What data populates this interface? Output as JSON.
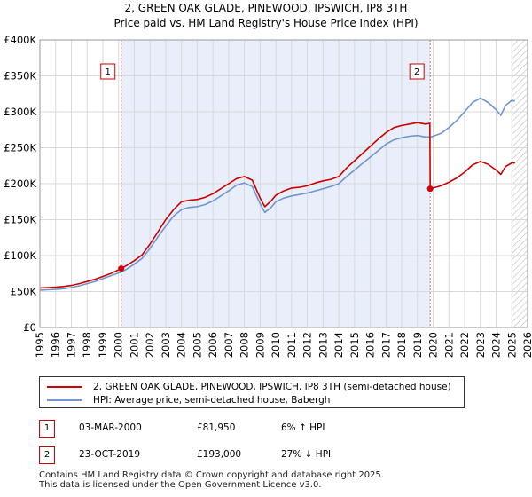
{
  "chart_data": {
    "type": "line",
    "title": "2, GREEN OAK GLADE, PINEWOOD, IPSWICH, IP8 3TH",
    "subtitle": "Price paid vs. HM Land Registry's House Price Index (HPI)",
    "xlabel": "",
    "ylabel": "",
    "xlim": [
      1995,
      2026
    ],
    "ylim": [
      0,
      400000
    ],
    "x_ticks": [
      1995,
      1996,
      1997,
      1998,
      1999,
      2000,
      2001,
      2002,
      2003,
      2004,
      2005,
      2006,
      2007,
      2008,
      2009,
      2010,
      2011,
      2012,
      2013,
      2014,
      2015,
      2016,
      2017,
      2018,
      2019,
      2020,
      2021,
      2022,
      2023,
      2024,
      2025,
      2026
    ],
    "y_ticks": [
      0,
      50000,
      100000,
      150000,
      200000,
      250000,
      300000,
      350000,
      400000
    ],
    "y_tick_labels": [
      "£0",
      "£50K",
      "£100K",
      "£150K",
      "£200K",
      "£250K",
      "£300K",
      "£350K",
      "£400K"
    ],
    "grid": true,
    "shaded_region": {
      "from": 2000.17,
      "to": 2019.81,
      "color": "#e8eefa"
    },
    "hatched_region": {
      "from": 2025.0,
      "to": 2026
    },
    "series": [
      {
        "name": "2, GREEN OAK GLADE, PINEWOOD, IPSWICH, IP8 3TH (semi-detached house)",
        "color": "#cc0000",
        "points": [
          [
            1995.0,
            55000
          ],
          [
            1995.5,
            55500
          ],
          [
            1996.0,
            56000
          ],
          [
            1996.5,
            57000
          ],
          [
            1997.0,
            58500
          ],
          [
            1997.5,
            61000
          ],
          [
            1998.0,
            64000
          ],
          [
            1998.5,
            67000
          ],
          [
            1999.0,
            71000
          ],
          [
            1999.5,
            75000
          ],
          [
            2000.17,
            81950
          ],
          [
            2000.5,
            86000
          ],
          [
            2001.0,
            93000
          ],
          [
            2001.5,
            101000
          ],
          [
            2002.0,
            116000
          ],
          [
            2002.5,
            133000
          ],
          [
            2003.0,
            150000
          ],
          [
            2003.5,
            164000
          ],
          [
            2004.0,
            175000
          ],
          [
            2004.5,
            177000
          ],
          [
            2005.0,
            178000
          ],
          [
            2005.5,
            181000
          ],
          [
            2006.0,
            186000
          ],
          [
            2006.5,
            193000
          ],
          [
            2007.0,
            200000
          ],
          [
            2007.5,
            207000
          ],
          [
            2008.0,
            210000
          ],
          [
            2008.5,
            205000
          ],
          [
            2009.0,
            180000
          ],
          [
            2009.3,
            168000
          ],
          [
            2009.7,
            176000
          ],
          [
            2010.0,
            184000
          ],
          [
            2010.5,
            190000
          ],
          [
            2011.0,
            194000
          ],
          [
            2011.5,
            195000
          ],
          [
            2012.0,
            197000
          ],
          [
            2012.5,
            201000
          ],
          [
            2013.0,
            204000
          ],
          [
            2013.5,
            206000
          ],
          [
            2014.0,
            210000
          ],
          [
            2014.5,
            222000
          ],
          [
            2015.0,
            232000
          ],
          [
            2015.5,
            242000
          ],
          [
            2016.0,
            252000
          ],
          [
            2016.5,
            262000
          ],
          [
            2017.0,
            271000
          ],
          [
            2017.5,
            278000
          ],
          [
            2018.0,
            281000
          ],
          [
            2018.5,
            283000
          ],
          [
            2019.0,
            285000
          ],
          [
            2019.5,
            283000
          ],
          [
            2019.79,
            284000
          ],
          [
            2019.81,
            193000
          ],
          [
            2020.0,
            194000
          ],
          [
            2020.5,
            197000
          ],
          [
            2021.0,
            202000
          ],
          [
            2021.5,
            208000
          ],
          [
            2022.0,
            216000
          ],
          [
            2022.5,
            226000
          ],
          [
            2023.0,
            231000
          ],
          [
            2023.5,
            227000
          ],
          [
            2024.0,
            219000
          ],
          [
            2024.3,
            213000
          ],
          [
            2024.6,
            224000
          ],
          [
            2025.0,
            229000
          ],
          [
            2025.2,
            229000
          ]
        ]
      },
      {
        "name": "HPI: Average price, semi-detached house, Babergh",
        "color": "#6f96cf",
        "points": [
          [
            1995.0,
            52000
          ],
          [
            1995.5,
            52500
          ],
          [
            1996.0,
            53000
          ],
          [
            1996.5,
            54000
          ],
          [
            1997.0,
            55500
          ],
          [
            1997.5,
            58000
          ],
          [
            1998.0,
            61000
          ],
          [
            1998.5,
            64000
          ],
          [
            1999.0,
            68000
          ],
          [
            1999.5,
            72000
          ],
          [
            2000.17,
            77000
          ],
          [
            2000.5,
            81000
          ],
          [
            2001.0,
            88000
          ],
          [
            2001.5,
            96000
          ],
          [
            2002.0,
            110000
          ],
          [
            2002.5,
            126000
          ],
          [
            2003.0,
            141000
          ],
          [
            2003.5,
            155000
          ],
          [
            2004.0,
            164000
          ],
          [
            2004.5,
            167000
          ],
          [
            2005.0,
            168000
          ],
          [
            2005.5,
            171000
          ],
          [
            2006.0,
            176000
          ],
          [
            2006.5,
            183000
          ],
          [
            2007.0,
            190000
          ],
          [
            2007.5,
            198000
          ],
          [
            2008.0,
            201000
          ],
          [
            2008.5,
            196000
          ],
          [
            2009.0,
            172000
          ],
          [
            2009.3,
            160000
          ],
          [
            2009.7,
            167000
          ],
          [
            2010.0,
            175000
          ],
          [
            2010.5,
            180000
          ],
          [
            2011.0,
            183000
          ],
          [
            2011.5,
            185000
          ],
          [
            2012.0,
            187000
          ],
          [
            2012.5,
            190000
          ],
          [
            2013.0,
            193000
          ],
          [
            2013.5,
            196000
          ],
          [
            2014.0,
            200000
          ],
          [
            2014.5,
            210000
          ],
          [
            2015.0,
            219000
          ],
          [
            2015.5,
            228000
          ],
          [
            2016.0,
            237000
          ],
          [
            2016.5,
            246000
          ],
          [
            2017.0,
            255000
          ],
          [
            2017.5,
            261000
          ],
          [
            2018.0,
            264000
          ],
          [
            2018.5,
            266000
          ],
          [
            2019.0,
            267000
          ],
          [
            2019.5,
            265000
          ],
          [
            2019.81,
            265000
          ],
          [
            2020.0,
            266000
          ],
          [
            2020.5,
            270000
          ],
          [
            2021.0,
            278000
          ],
          [
            2021.5,
            288000
          ],
          [
            2022.0,
            300000
          ],
          [
            2022.5,
            313000
          ],
          [
            2023.0,
            319000
          ],
          [
            2023.5,
            313000
          ],
          [
            2024.0,
            303000
          ],
          [
            2024.3,
            295000
          ],
          [
            2024.6,
            309000
          ],
          [
            2025.0,
            316000
          ],
          [
            2025.2,
            315000
          ]
        ]
      }
    ],
    "sales": [
      {
        "n": "1",
        "x": 2000.17,
        "y": 81950,
        "date": "03-MAR-2000",
        "price": "£81,950",
        "hpi": "6% ↑ HPI"
      },
      {
        "n": "2",
        "x": 2019.81,
        "y": 193000,
        "date": "23-OCT-2019",
        "price": "£193,000",
        "hpi": "27% ↓ HPI"
      }
    ]
  },
  "footer": {
    "line1": "Contains HM Land Registry data © Crown copyright and database right 2025.",
    "line2": "This data is licensed under the Open Government Licence v3.0."
  }
}
